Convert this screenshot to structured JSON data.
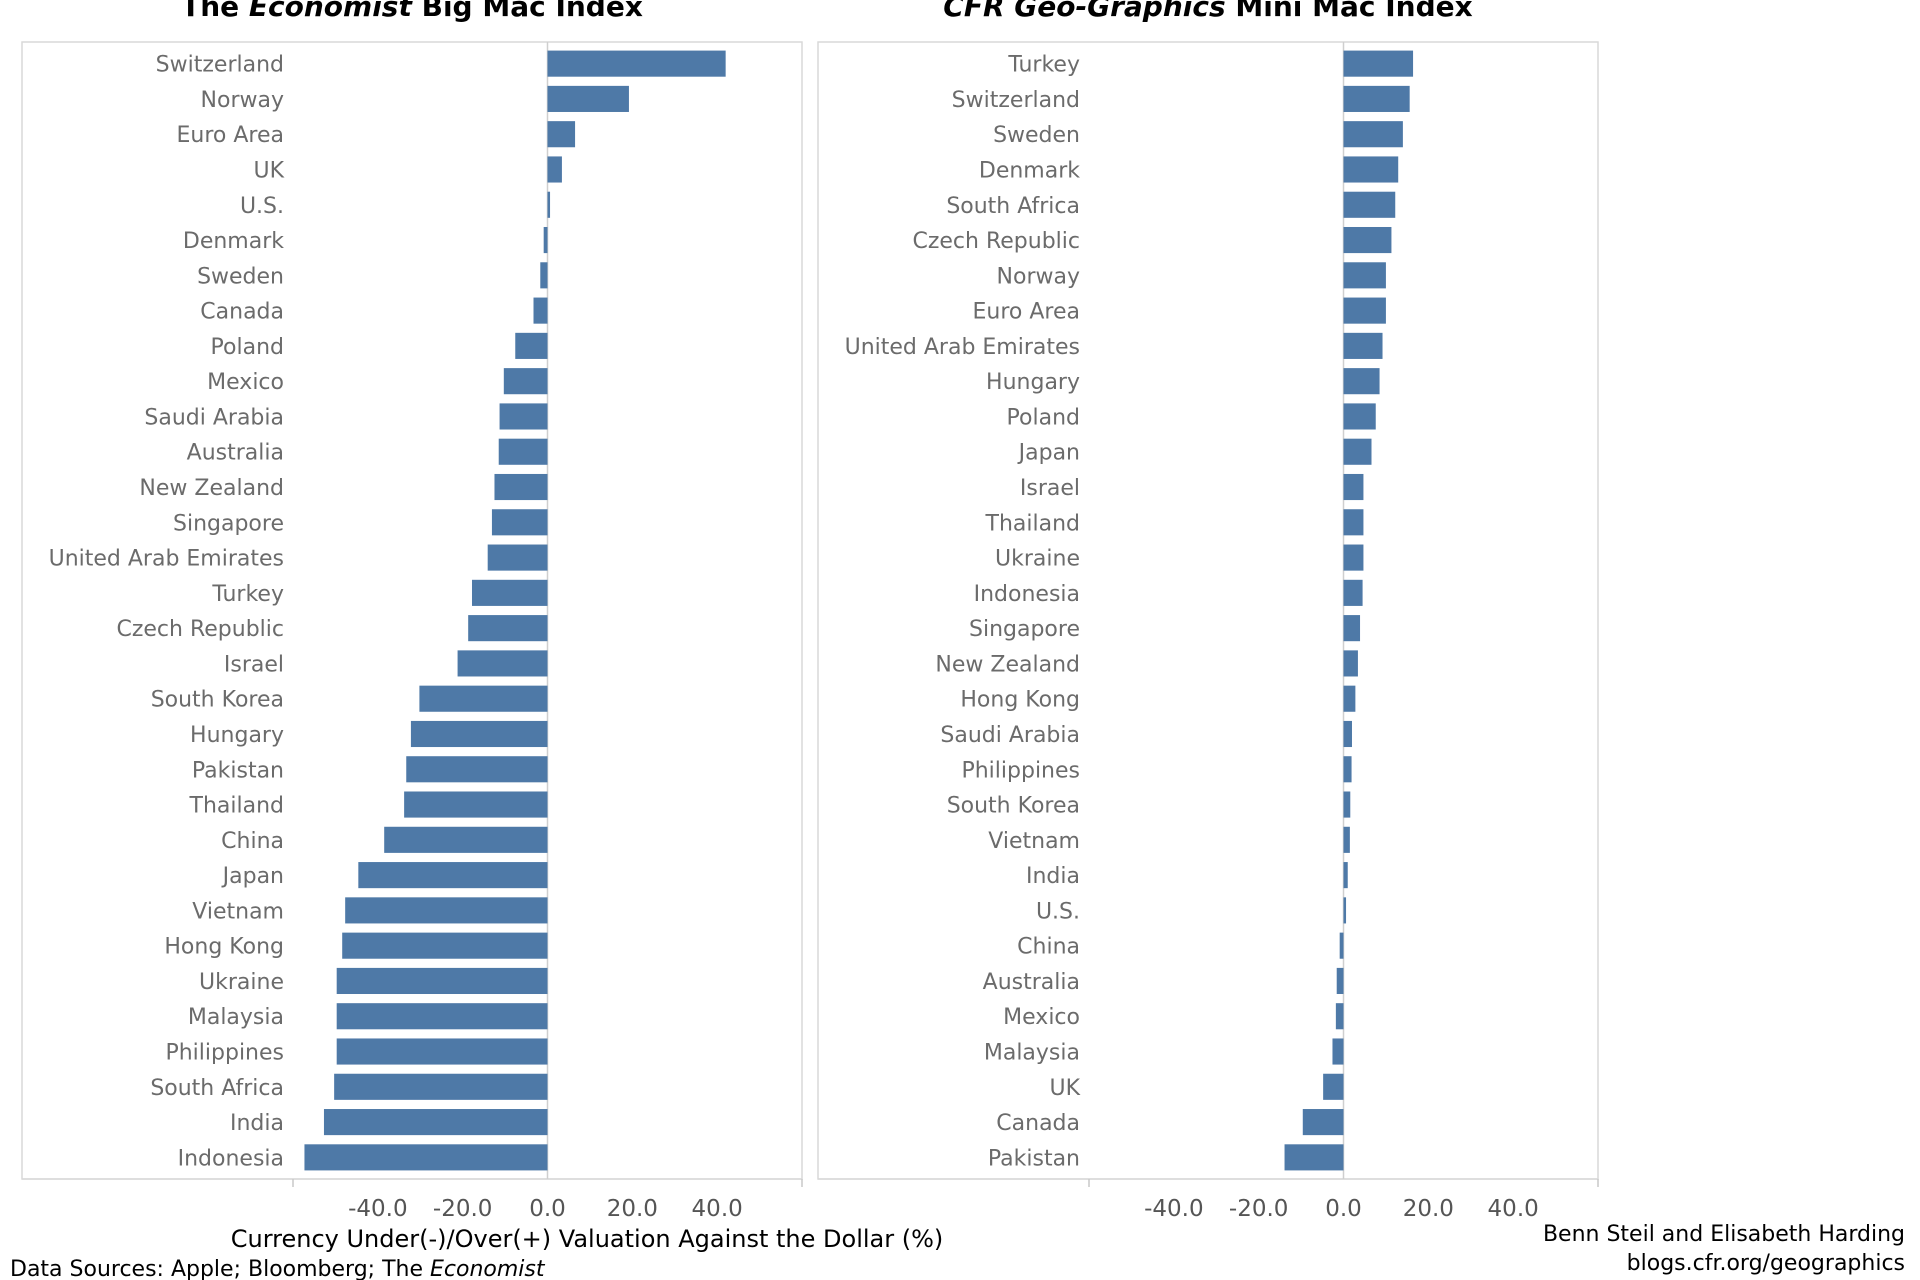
{
  "colors": {
    "bar": "#4e79a7",
    "frame": "#d9d9d9",
    "zero": "#cfcfcf"
  },
  "chart_data": [
    {
      "type": "bar",
      "orientation": "horizontal",
      "title_parts": {
        "pre": "The ",
        "italic": "Economist",
        "post": " Big Mac Index"
      },
      "xlabel": "Currency Under(-)/Over(+) Valuation Against the Dollar (%)",
      "xlim": [
        -60,
        60
      ],
      "ticks": [
        "-40.0",
        "-20.0",
        "0.0",
        "20.0",
        "40.0"
      ],
      "tick_values": [
        -40,
        -20,
        0,
        20,
        40
      ],
      "categories": [
        "Switzerland",
        "Norway",
        "Euro Area",
        "UK",
        "U.S.",
        "Denmark",
        "Sweden",
        "Canada",
        "Poland",
        "Mexico",
        "Saudi Arabia",
        "Australia",
        "New Zealand",
        "Singapore",
        "United Arab Emirates",
        "Turkey",
        "Czech Republic",
        "Israel",
        "South Korea",
        "Hungary",
        "Pakistan",
        "Thailand",
        "China",
        "Japan",
        "Vietnam",
        "Hong Kong",
        "Ukraine",
        "Malaysia",
        "Philippines",
        "South Africa",
        "India",
        "Indonesia"
      ],
      "values": [
        42.0,
        19.2,
        6.5,
        3.4,
        0.6,
        -0.9,
        -1.7,
        -3.3,
        -7.6,
        -10.3,
        -11.3,
        -11.5,
        -12.5,
        -13.1,
        -14.1,
        -17.8,
        -18.7,
        -21.2,
        -30.2,
        -32.2,
        -33.3,
        -33.8,
        -38.5,
        -44.6,
        -47.7,
        -48.4,
        -49.7,
        -49.7,
        -49.7,
        -50.3,
        -52.7,
        -57.3
      ]
    },
    {
      "type": "bar",
      "orientation": "horizontal",
      "title_parts": {
        "pre": "",
        "italic": "CFR Geo-Graphics",
        "post": " Mini Mac Index"
      },
      "xlabel": "",
      "xlim": [
        -60,
        60
      ],
      "ticks": [
        "-40.0",
        "-20.0",
        "0.0",
        "20.0",
        "40.0"
      ],
      "tick_values": [
        -40,
        -20,
        0,
        20,
        40
      ],
      "categories": [
        "Turkey",
        "Switzerland",
        "Sweden",
        "Denmark",
        "South Africa",
        "Czech Republic",
        "Norway",
        "Euro Area",
        "United Arab Emirates",
        "Hungary",
        "Poland",
        "Japan",
        "Israel",
        "Thailand",
        "Ukraine",
        "Indonesia",
        "Singapore",
        "New Zealand",
        "Hong Kong",
        "Saudi Arabia",
        "Philippines",
        "South Korea",
        "Vietnam",
        "India",
        "U.S.",
        "China",
        "Australia",
        "Mexico",
        "Malaysia",
        "UK",
        "Canada",
        "Pakistan"
      ],
      "values": [
        16.4,
        15.6,
        14.0,
        12.9,
        12.2,
        11.3,
        10.0,
        10.0,
        9.2,
        8.5,
        7.6,
        6.6,
        4.7,
        4.7,
        4.7,
        4.5,
        3.9,
        3.4,
        2.8,
        2.0,
        1.9,
        1.6,
        1.5,
        1.0,
        0.6,
        -0.9,
        -1.6,
        -1.8,
        -2.6,
        -4.8,
        -9.6,
        -13.9
      ]
    }
  ],
  "footer": {
    "sources_prefix": "Data Sources: Apple; Bloomberg; The ",
    "sources_italic": "Economist",
    "credit": "Benn Steil and Elisabeth Harding",
    "url": "blogs.cfr.org/geographics"
  }
}
